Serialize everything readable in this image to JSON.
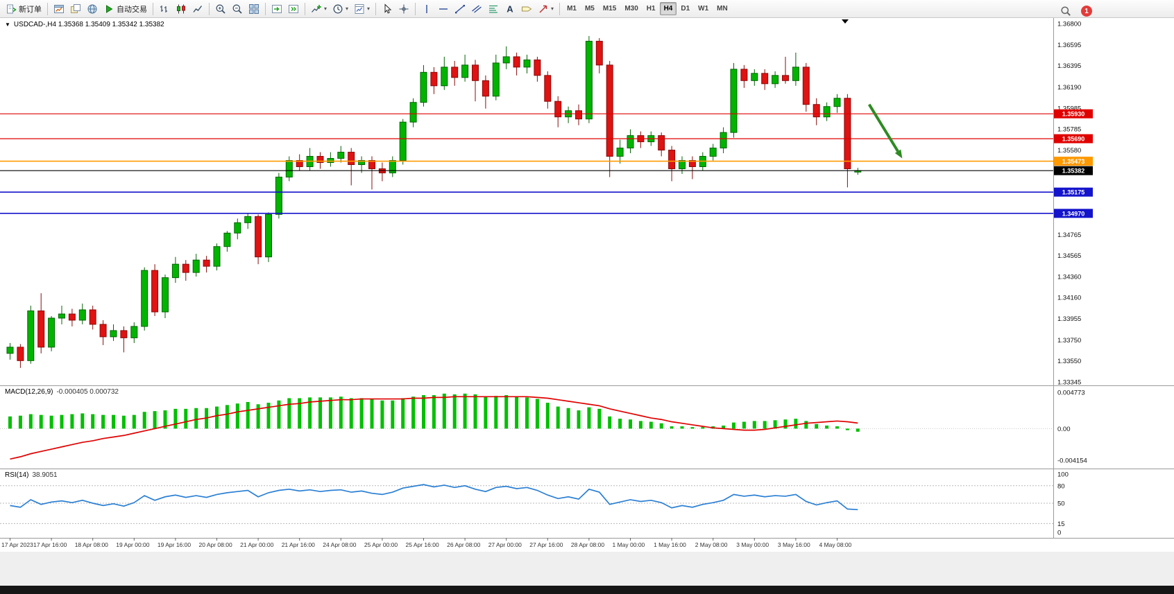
{
  "toolbar": {
    "groups": [
      {
        "items": [
          {
            "name": "new-order",
            "icon": "new-order",
            "label": "新订单"
          }
        ]
      },
      {
        "items": [
          {
            "name": "charts",
            "icon": "chart-window"
          },
          {
            "name": "profiles",
            "icon": "profiles"
          },
          {
            "name": "data-window",
            "icon": "globe"
          },
          {
            "name": "auto-trading",
            "icon": "play",
            "label": "自动交易"
          }
        ]
      },
      {
        "items": [
          {
            "name": "bar-chart-mode",
            "icon": "bars"
          },
          {
            "name": "candlestick-mode",
            "icon": "candles"
          },
          {
            "name": "line-chart-mode",
            "icon": "linechart"
          }
        ]
      },
      {
        "items": [
          {
            "name": "zoom-in",
            "icon": "zoom-in"
          },
          {
            "name": "zoom-out",
            "icon": "zoom-out"
          },
          {
            "name": "tile-windows",
            "icon": "tile"
          }
        ]
      },
      {
        "items": [
          {
            "name": "auto-scroll",
            "icon": "auto-scroll"
          },
          {
            "name": "chart-shift",
            "icon": "chart-shift"
          }
        ]
      },
      {
        "items": [
          {
            "name": "indicators",
            "icon": "indicators",
            "dropdown": true
          },
          {
            "name": "periods",
            "icon": "clock",
            "dropdown": true
          },
          {
            "name": "templates",
            "icon": "template",
            "dropdown": true
          }
        ]
      },
      {
        "items": [
          {
            "name": "cursor",
            "icon": "cursor"
          },
          {
            "name": "crosshair",
            "icon": "crosshair"
          }
        ]
      },
      {
        "items": [
          {
            "name": "vertical-line-tool",
            "icon": "vline"
          },
          {
            "name": "horizontal-line-tool",
            "icon": "hline"
          },
          {
            "name": "trendline-tool",
            "icon": "trendline"
          },
          {
            "name": "channel-tool",
            "icon": "channel"
          },
          {
            "name": "fibonacci-tool",
            "icon": "fibo"
          },
          {
            "name": "text-tool",
            "icon": "text"
          },
          {
            "name": "label-tool",
            "icon": "label"
          },
          {
            "name": "arrows-tool",
            "icon": "arrow",
            "dropdown": true
          }
        ]
      }
    ],
    "timeframes": {
      "items": [
        "M1",
        "M5",
        "M15",
        "M30",
        "H1",
        "H4",
        "D1",
        "W1",
        "MN"
      ],
      "active": "H4"
    },
    "notification_count": "1"
  },
  "chart_data": {
    "type": "candlestick",
    "symbol": "USDCAD-",
    "period": "H4",
    "title_text": "USDCAD-,H4  1.35368 1.35409 1.35342 1.35382",
    "ohlc_display": {
      "open": "1.35368",
      "high": "1.35409",
      "low": "1.35342",
      "close": "1.35382"
    },
    "colors": {
      "bull": "#00b400",
      "bull_border": "#046404",
      "bear": "#e01212",
      "bear_border": "#8a0b0b",
      "macd_hist": "#00c000",
      "macd_signal": "#e00000",
      "rsi_line": "#2a7fd4",
      "resistance": "#e00000",
      "pivot": "#ff9900",
      "support": "#1414cc",
      "current_price": "#000000",
      "arrow": "#2e8b22"
    },
    "y_axis": {
      "labels": [
        "1.36800",
        "1.36595",
        "1.36395",
        "1.36190",
        "1.35985",
        "1.35785",
        "1.35580",
        "1.34765",
        "1.34565",
        "1.34360",
        "1.34160",
        "1.33955",
        "1.33750",
        "1.33550",
        "1.33345"
      ]
    },
    "levels": [
      {
        "label": "1.35930",
        "price": 1.3593,
        "color": "#e00000",
        "kind": "resistance"
      },
      {
        "label": "1.35690",
        "price": 1.3569,
        "color": "#e00000",
        "kind": "resistance"
      },
      {
        "label": "1.35473",
        "price": 1.35473,
        "color": "#ff9900",
        "kind": "pivot"
      },
      {
        "label": "1.35382",
        "price": 1.35382,
        "color": "#000000",
        "kind": "current",
        "current": true
      },
      {
        "label": "1.35175",
        "price": 1.35175,
        "color": "#1414cc",
        "kind": "support"
      },
      {
        "label": "1.34970",
        "price": 1.3497,
        "color": "#1414cc",
        "kind": "support"
      }
    ],
    "arrow_annotation": {
      "from": {
        "t": 83.4,
        "price": 1.3602
      },
      "to": {
        "t": 86.6,
        "price": 1.355
      },
      "color": "#2e8b22"
    },
    "time_labels": [
      "17 Apr 2023",
      "17 Apr 16:00",
      "18 Apr 08:00",
      "19 Apr 00:00",
      "19 Apr 16:00",
      "20 Apr 08:00",
      "21 Apr 00:00",
      "21 Apr 16:00",
      "24 Apr 08:00",
      "25 Apr 00:00",
      "25 Apr 16:00",
      "26 Apr 08:00",
      "27 Apr 00:00",
      "27 Apr 16:00",
      "28 Apr 08:00",
      "1 May 00:00",
      "1 May 16:00",
      "2 May 08:00",
      "3 May 00:00",
      "3 May 16:00",
      "4 May 08:00"
    ],
    "candles": [
      [
        1.3362,
        1.3372,
        1.3356,
        1.3368
      ],
      [
        1.3368,
        1.3371,
        1.3348,
        1.3355
      ],
      [
        1.3355,
        1.3408,
        1.3352,
        1.3403
      ],
      [
        1.3403,
        1.342,
        1.3362,
        1.3368
      ],
      [
        1.3368,
        1.3398,
        1.3364,
        1.3396
      ],
      [
        1.3396,
        1.3408,
        1.339,
        1.34
      ],
      [
        1.34,
        1.3405,
        1.3388,
        1.3394
      ],
      [
        1.3394,
        1.341,
        1.339,
        1.3404
      ],
      [
        1.3404,
        1.3408,
        1.3385,
        1.339
      ],
      [
        1.339,
        1.3394,
        1.337,
        1.3378
      ],
      [
        1.3378,
        1.339,
        1.3374,
        1.3384
      ],
      [
        1.3384,
        1.3388,
        1.3363,
        1.3377
      ],
      [
        1.3377,
        1.3392,
        1.3372,
        1.3388
      ],
      [
        1.3388,
        1.3445,
        1.3384,
        1.3442
      ],
      [
        1.3442,
        1.3448,
        1.3398,
        1.3402
      ],
      [
        1.3402,
        1.3438,
        1.3396,
        1.3435
      ],
      [
        1.3435,
        1.3455,
        1.343,
        1.3448
      ],
      [
        1.3448,
        1.3452,
        1.3432,
        1.344
      ],
      [
        1.344,
        1.3458,
        1.3436,
        1.3452
      ],
      [
        1.3452,
        1.3456,
        1.344,
        1.3446
      ],
      [
        1.3446,
        1.3468,
        1.3442,
        1.3465
      ],
      [
        1.3465,
        1.348,
        1.346,
        1.3478
      ],
      [
        1.3478,
        1.3492,
        1.3472,
        1.3488
      ],
      [
        1.3488,
        1.3497,
        1.3482,
        1.3494
      ],
      [
        1.3494,
        1.3496,
        1.3448,
        1.3455
      ],
      [
        1.3455,
        1.3498,
        1.345,
        1.3496
      ],
      [
        1.3496,
        1.3536,
        1.3492,
        1.3532
      ],
      [
        1.3532,
        1.3552,
        1.3528,
        1.3548
      ],
      [
        1.3548,
        1.3554,
        1.3538,
        1.3542
      ],
      [
        1.3542,
        1.356,
        1.3538,
        1.3552
      ],
      [
        1.3552,
        1.3556,
        1.354,
        1.3546
      ],
      [
        1.3546,
        1.3556,
        1.3542,
        1.355
      ],
      [
        1.355,
        1.3562,
        1.3546,
        1.3556
      ],
      [
        1.3556,
        1.356,
        1.3524,
        1.3544
      ],
      [
        1.3544,
        1.3552,
        1.3536,
        1.3548
      ],
      [
        1.3548,
        1.3552,
        1.352,
        1.354
      ],
      [
        1.354,
        1.3546,
        1.3528,
        1.3536
      ],
      [
        1.3536,
        1.3552,
        1.3532,
        1.3548
      ],
      [
        1.3548,
        1.3588,
        1.3544,
        1.3585
      ],
      [
        1.3585,
        1.3608,
        1.358,
        1.3604
      ],
      [
        1.3604,
        1.364,
        1.36,
        1.3633
      ],
      [
        1.3633,
        1.3638,
        1.3612,
        1.362
      ],
      [
        1.362,
        1.3648,
        1.3616,
        1.3638
      ],
      [
        1.3638,
        1.3644,
        1.362,
        1.3628
      ],
      [
        1.3628,
        1.365,
        1.3624,
        1.364
      ],
      [
        1.364,
        1.3645,
        1.3605,
        1.3625
      ],
      [
        1.3625,
        1.363,
        1.3598,
        1.361
      ],
      [
        1.361,
        1.365,
        1.3606,
        1.3642
      ],
      [
        1.3642,
        1.3658,
        1.3636,
        1.3648
      ],
      [
        1.3648,
        1.3652,
        1.363,
        1.3638
      ],
      [
        1.3638,
        1.365,
        1.3632,
        1.3645
      ],
      [
        1.3645,
        1.3648,
        1.3624,
        1.363
      ],
      [
        1.363,
        1.3634,
        1.3598,
        1.3605
      ],
      [
        1.3605,
        1.361,
        1.358,
        1.359
      ],
      [
        1.359,
        1.36,
        1.3584,
        1.3596
      ],
      [
        1.3596,
        1.3602,
        1.3582,
        1.3588
      ],
      [
        1.3588,
        1.3668,
        1.3584,
        1.3663
      ],
      [
        1.3663,
        1.3666,
        1.3632,
        1.364
      ],
      [
        1.364,
        1.3644,
        1.3532,
        1.3552
      ],
      [
        1.3552,
        1.3568,
        1.3545,
        1.356
      ],
      [
        1.356,
        1.3578,
        1.3555,
        1.3572
      ],
      [
        1.3572,
        1.3576,
        1.356,
        1.3566
      ],
      [
        1.3566,
        1.3576,
        1.3562,
        1.3572
      ],
      [
        1.3572,
        1.3575,
        1.3552,
        1.3558
      ],
      [
        1.3558,
        1.3562,
        1.3528,
        1.354
      ],
      [
        1.354,
        1.3552,
        1.3535,
        1.3548
      ],
      [
        1.3548,
        1.3552,
        1.353,
        1.3542
      ],
      [
        1.3542,
        1.3556,
        1.3538,
        1.3552
      ],
      [
        1.3552,
        1.3564,
        1.3548,
        1.356
      ],
      [
        1.356,
        1.358,
        1.3555,
        1.3575
      ],
      [
        1.3575,
        1.3642,
        1.357,
        1.3636
      ],
      [
        1.3636,
        1.364,
        1.3618,
        1.3625
      ],
      [
        1.3625,
        1.3636,
        1.362,
        1.3632
      ],
      [
        1.3632,
        1.3636,
        1.3616,
        1.3622
      ],
      [
        1.3622,
        1.3634,
        1.3618,
        1.363
      ],
      [
        1.363,
        1.3648,
        1.3622,
        1.3625
      ],
      [
        1.3625,
        1.3652,
        1.362,
        1.3638
      ],
      [
        1.3638,
        1.3642,
        1.3595,
        1.3602
      ],
      [
        1.3602,
        1.3608,
        1.3582,
        1.359
      ],
      [
        1.359,
        1.3604,
        1.3586,
        1.36
      ],
      [
        1.36,
        1.3612,
        1.3594,
        1.3608
      ],
      [
        1.3608,
        1.3612,
        1.3522,
        1.354
      ],
      [
        1.35368,
        1.35409,
        1.35342,
        1.35382
      ]
    ],
    "macd": {
      "title": "MACD(12,26,9)",
      "values_text": "-0.000405 0.000732",
      "axis": [
        "0.004773",
        "0.00",
        "-0.004154"
      ],
      "hist": [
        0.0016,
        0.0017,
        0.0019,
        0.0018,
        0.0017,
        0.0018,
        0.0019,
        0.002,
        0.0019,
        0.0018,
        0.0018,
        0.0017,
        0.0018,
        0.0022,
        0.0023,
        0.0024,
        0.0026,
        0.0026,
        0.0027,
        0.0027,
        0.0029,
        0.0031,
        0.0033,
        0.0035,
        0.0032,
        0.0034,
        0.0037,
        0.004,
        0.004,
        0.0041,
        0.0041,
        0.0041,
        0.0042,
        0.004,
        0.004,
        0.0039,
        0.0037,
        0.0037,
        0.004,
        0.0042,
        0.0044,
        0.0044,
        0.0046,
        0.0045,
        0.0046,
        0.0045,
        0.0042,
        0.0043,
        0.0044,
        0.0042,
        0.0041,
        0.0039,
        0.0034,
        0.0029,
        0.0027,
        0.0024,
        0.0028,
        0.0026,
        0.0016,
        0.0013,
        0.0012,
        0.001,
        0.0009,
        0.0007,
        0.0003,
        0.0003,
        0.0002,
        0.0002,
        0.0003,
        0.0004,
        0.0008,
        0.0009,
        0.001,
        0.001,
        0.0011,
        0.0012,
        0.0013,
        0.001,
        0.0006,
        0.0004,
        0.0003,
        -0.0002,
        -0.000405
      ],
      "signal": [
        -0.004,
        -0.0037,
        -0.0033,
        -0.003,
        -0.0027,
        -0.0024,
        -0.0021,
        -0.0018,
        -0.0016,
        -0.0013,
        -0.0011,
        -0.0009,
        -0.0006,
        -0.0003,
        0.0,
        0.0003,
        0.0006,
        0.0009,
        0.0012,
        0.0014,
        0.0017,
        0.0019,
        0.0022,
        0.0024,
        0.0026,
        0.0028,
        0.003,
        0.0032,
        0.0033,
        0.0035,
        0.0036,
        0.0037,
        0.0038,
        0.0038,
        0.0039,
        0.0039,
        0.0039,
        0.0039,
        0.0039,
        0.004,
        0.004,
        0.0041,
        0.0041,
        0.0042,
        0.0042,
        0.0042,
        0.0042,
        0.0042,
        0.0042,
        0.0042,
        0.0042,
        0.0041,
        0.004,
        0.0038,
        0.0036,
        0.0034,
        0.0032,
        0.003,
        0.0026,
        0.0023,
        0.002,
        0.0017,
        0.0014,
        0.0012,
        0.0009,
        0.0007,
        0.0005,
        0.0003,
        0.0001,
        0.0,
        -0.0001,
        -0.0002,
        -0.0002,
        -0.0001,
        0.0001,
        0.0003,
        0.0005,
        0.0007,
        0.0008,
        0.0009,
        0.001,
        0.0009,
        0.000732
      ]
    },
    "rsi": {
      "title": "RSI(14)",
      "value_text": "38.9051",
      "axis": [
        "100",
        "80",
        "50",
        "15",
        "0"
      ],
      "levels": [
        80,
        50,
        15
      ],
      "values": [
        46,
        43,
        56,
        48,
        52,
        54,
        51,
        55,
        50,
        46,
        49,
        45,
        51,
        63,
        55,
        61,
        64,
        60,
        63,
        60,
        65,
        68,
        70,
        72,
        61,
        68,
        72,
        74,
        71,
        73,
        70,
        72,
        73,
        69,
        71,
        67,
        65,
        69,
        76,
        79,
        82,
        78,
        81,
        77,
        80,
        74,
        70,
        77,
        79,
        75,
        77,
        72,
        64,
        58,
        61,
        57,
        74,
        69,
        48,
        52,
        56,
        53,
        55,
        51,
        42,
        46,
        43,
        48,
        51,
        55,
        65,
        62,
        64,
        61,
        63,
        62,
        65,
        53,
        47,
        51,
        54,
        40,
        38.9
      ]
    }
  }
}
